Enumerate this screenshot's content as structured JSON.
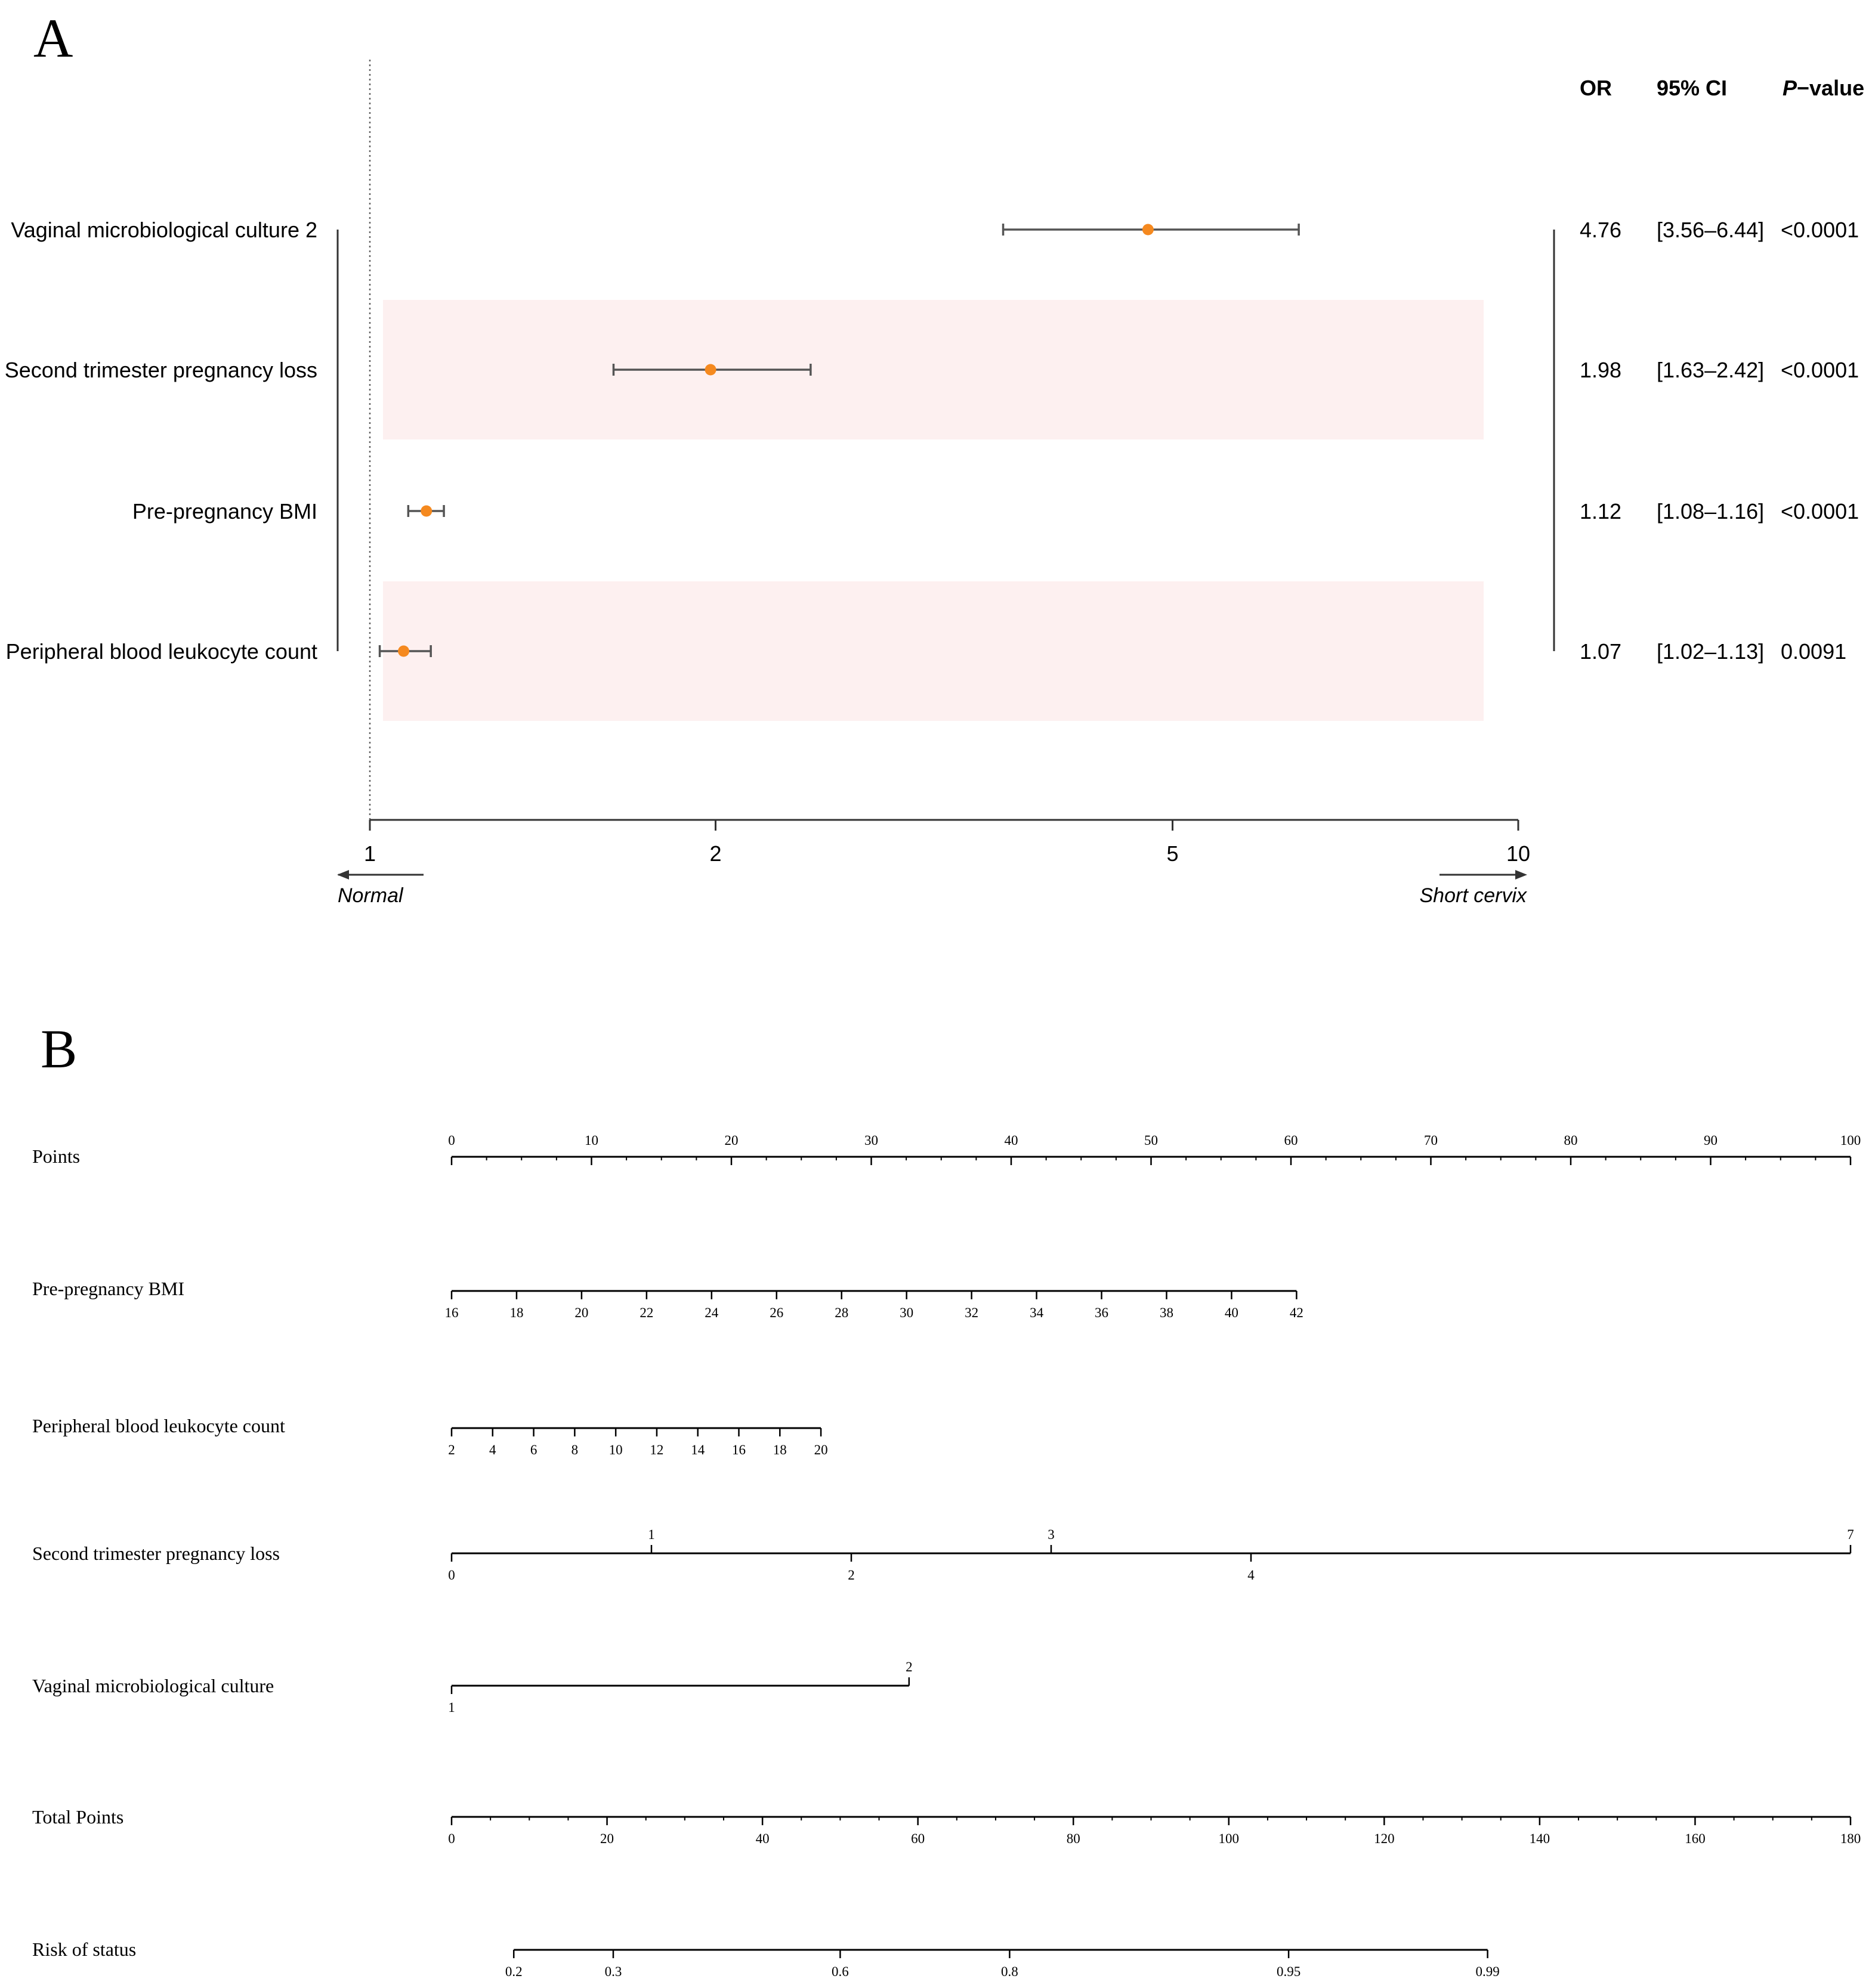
{
  "colors": {
    "point": "#F5891F",
    "line": "#555555",
    "band": "#FDF0F0",
    "axis": "#333333",
    "text": "#000000"
  },
  "chart_data": [
    {
      "panel_label": "A",
      "type": "scatter",
      "subtype": "forest",
      "x_scale": "log",
      "xlim": [
        1,
        10
      ],
      "x_ticks": [
        1,
        2,
        5,
        10
      ],
      "reference_line": 1,
      "columns": {
        "or": "OR",
        "ci": "95% CI",
        "p_italic": "P",
        "p_rest": "−value"
      },
      "direction_left": "Normal",
      "direction_right": "Short cervix",
      "rows": [
        {
          "label": "Vaginal microbiological culture 2",
          "or": 4.76,
          "lo": 3.56,
          "hi": 6.44,
          "or_text": "4.76",
          "ci_text": "[3.56–6.44]",
          "p_text": "<0.0001",
          "shaded": false
        },
        {
          "label": "Second trimester pregnancy loss",
          "or": 1.98,
          "lo": 1.63,
          "hi": 2.42,
          "or_text": "1.98",
          "ci_text": "[1.63–2.42]",
          "p_text": "<0.0001",
          "shaded": true
        },
        {
          "label": "Pre-pregnancy BMI",
          "or": 1.12,
          "lo": 1.08,
          "hi": 1.16,
          "or_text": "1.12",
          "ci_text": "[1.08–1.16]",
          "p_text": "<0.0001",
          "shaded": false
        },
        {
          "label": "Peripheral blood leukocyte count",
          "or": 1.07,
          "lo": 1.02,
          "hi": 1.13,
          "or_text": "1.07",
          "ci_text": "[1.02–1.13]",
          "p_text": "0.0091",
          "shaded": true
        }
      ]
    },
    {
      "panel_label": "B",
      "type": "nomogram",
      "rows": [
        {
          "name": "Points",
          "axis": "points",
          "min": 0,
          "max": 100,
          "ticks": [
            {
              "v": 0,
              "t": "0"
            },
            {
              "v": 10,
              "t": "10"
            },
            {
              "v": 20,
              "t": "20"
            },
            {
              "v": 30,
              "t": "30"
            },
            {
              "v": 40,
              "t": "40"
            },
            {
              "v": 50,
              "t": "50"
            },
            {
              "v": 60,
              "t": "60"
            },
            {
              "v": 70,
              "t": "70"
            },
            {
              "v": 80,
              "t": "80"
            },
            {
              "v": 90,
              "t": "90"
            },
            {
              "v": 100,
              "t": "100"
            }
          ],
          "minor_step": 2.5
        },
        {
          "name": "Pre-pregnancy BMI",
          "axis": "variable",
          "var_min": 16,
          "var_max": 42,
          "points_min": 0,
          "points_max": 60.4,
          "ticks": [
            {
              "v": 16,
              "t": "16"
            },
            {
              "v": 18,
              "t": "18"
            },
            {
              "v": 20,
              "t": "20"
            },
            {
              "v": 22,
              "t": "22"
            },
            {
              "v": 24,
              "t": "24"
            },
            {
              "v": 26,
              "t": "26"
            },
            {
              "v": 28,
              "t": "28"
            },
            {
              "v": 30,
              "t": "30"
            },
            {
              "v": 32,
              "t": "32"
            },
            {
              "v": 34,
              "t": "34"
            },
            {
              "v": 36,
              "t": "36"
            },
            {
              "v": 38,
              "t": "38"
            },
            {
              "v": 40,
              "t": "40"
            },
            {
              "v": 42,
              "t": "42"
            }
          ]
        },
        {
          "name": "Peripheral blood leukocyte count",
          "axis": "variable",
          "var_min": 2,
          "var_max": 20,
          "points_min": 0,
          "points_max": 26.4,
          "ticks": [
            {
              "v": 2,
              "t": "2"
            },
            {
              "v": 4,
              "t": "4"
            },
            {
              "v": 6,
              "t": "6"
            },
            {
              "v": 8,
              "t": "8"
            },
            {
              "v": 10,
              "t": "10"
            },
            {
              "v": 12,
              "t": "12"
            },
            {
              "v": 14,
              "t": "14"
            },
            {
              "v": 16,
              "t": "16"
            },
            {
              "v": 18,
              "t": "18"
            },
            {
              "v": 20,
              "t": "20"
            }
          ]
        },
        {
          "name": "Second trimester pregnancy loss",
          "axis": "variable",
          "var_min": 0,
          "var_max": 7,
          "points_min": 0,
          "points_max": 100,
          "ticks": [
            {
              "v": 0,
              "t": "0",
              "pos": "below"
            },
            {
              "v": 1,
              "t": "1",
              "pos": "above"
            },
            {
              "v": 2,
              "t": "2",
              "pos": "below"
            },
            {
              "v": 3,
              "t": "3",
              "pos": "above"
            },
            {
              "v": 4,
              "t": "4",
              "pos": "below"
            },
            {
              "v": 7,
              "t": "7",
              "pos": "above"
            }
          ]
        },
        {
          "name": "Vaginal microbiological culture",
          "axis": "variable",
          "var_min": 1,
          "var_max": 2,
          "points_min": 0,
          "points_max": 32.7,
          "ticks": [
            {
              "v": 1,
              "t": "1",
              "pos": "below"
            },
            {
              "v": 2,
              "t": "2",
              "pos": "above"
            }
          ]
        },
        {
          "name": "Total Points",
          "axis": "total",
          "min": 0,
          "max": 180,
          "ticks": [
            {
              "v": 0,
              "t": "0"
            },
            {
              "v": 20,
              "t": "20"
            },
            {
              "v": 40,
              "t": "40"
            },
            {
              "v": 60,
              "t": "60"
            },
            {
              "v": 80,
              "t": "80"
            },
            {
              "v": 100,
              "t": "100"
            },
            {
              "v": 120,
              "t": "120"
            },
            {
              "v": 140,
              "t": "140"
            },
            {
              "v": 160,
              "t": "160"
            },
            {
              "v": 180,
              "t": "180"
            }
          ],
          "minor_step": 5
        },
        {
          "name": "Risk of status",
          "axis": "risk",
          "ticks": [
            {
              "t": "0.2",
              "total": 8.0
            },
            {
              "t": "0.3",
              "total": 20.8
            },
            {
              "t": "0.6",
              "total": 50.0
            },
            {
              "t": "0.8",
              "total": 71.8
            },
            {
              "t": "0.95",
              "total": 107.7
            },
            {
              "t": "0.99",
              "total": 133.3
            }
          ]
        }
      ]
    }
  ]
}
